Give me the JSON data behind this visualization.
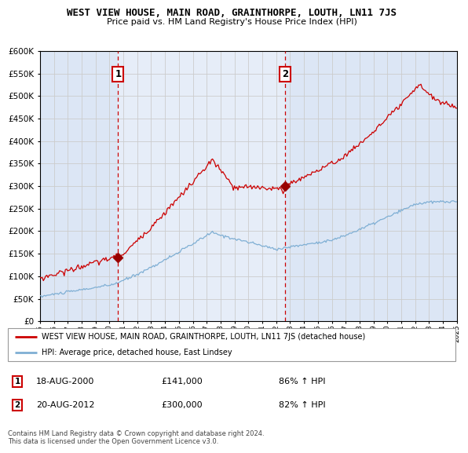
{
  "title": "WEST VIEW HOUSE, MAIN ROAD, GRAINTHORPE, LOUTH, LN11 7JS",
  "subtitle": "Price paid vs. HM Land Registry's House Price Index (HPI)",
  "background_color": "#ffffff",
  "plot_bg_color": "#dce6f5",
  "grid_color": "#cccccc",
  "x_start_year": 1995,
  "x_end_year": 2025,
  "ylim": [
    0,
    600000
  ],
  "yticks": [
    0,
    50000,
    100000,
    150000,
    200000,
    250000,
    300000,
    350000,
    400000,
    450000,
    500000,
    550000,
    600000
  ],
  "sale1_year": 2000.625,
  "sale1_price": 141000,
  "sale1_label": "18-AUG-2000",
  "sale1_pct": "86% ↑ HPI",
  "sale2_year": 2012.625,
  "sale2_price": 300000,
  "sale2_label": "20-AUG-2012",
  "sale2_pct": "82% ↑ HPI",
  "red_line_color": "#cc0000",
  "blue_line_color": "#7fafd4",
  "marker_color": "#990000",
  "dashed_line_color": "#cc0000",
  "legend_red_label": "WEST VIEW HOUSE, MAIN ROAD, GRAINTHORPE, LOUTH, LN11 7JS (detached house)",
  "legend_blue_label": "HPI: Average price, detached house, East Lindsey",
  "footnote": "Contains HM Land Registry data © Crown copyright and database right 2024.\nThis data is licensed under the Open Government Licence v3.0.",
  "table_row1": [
    "1",
    "18-AUG-2000",
    "£141,000",
    "86% ↑ HPI"
  ],
  "table_row2": [
    "2",
    "20-AUG-2012",
    "£300,000",
    "82% ↑ HPI"
  ]
}
